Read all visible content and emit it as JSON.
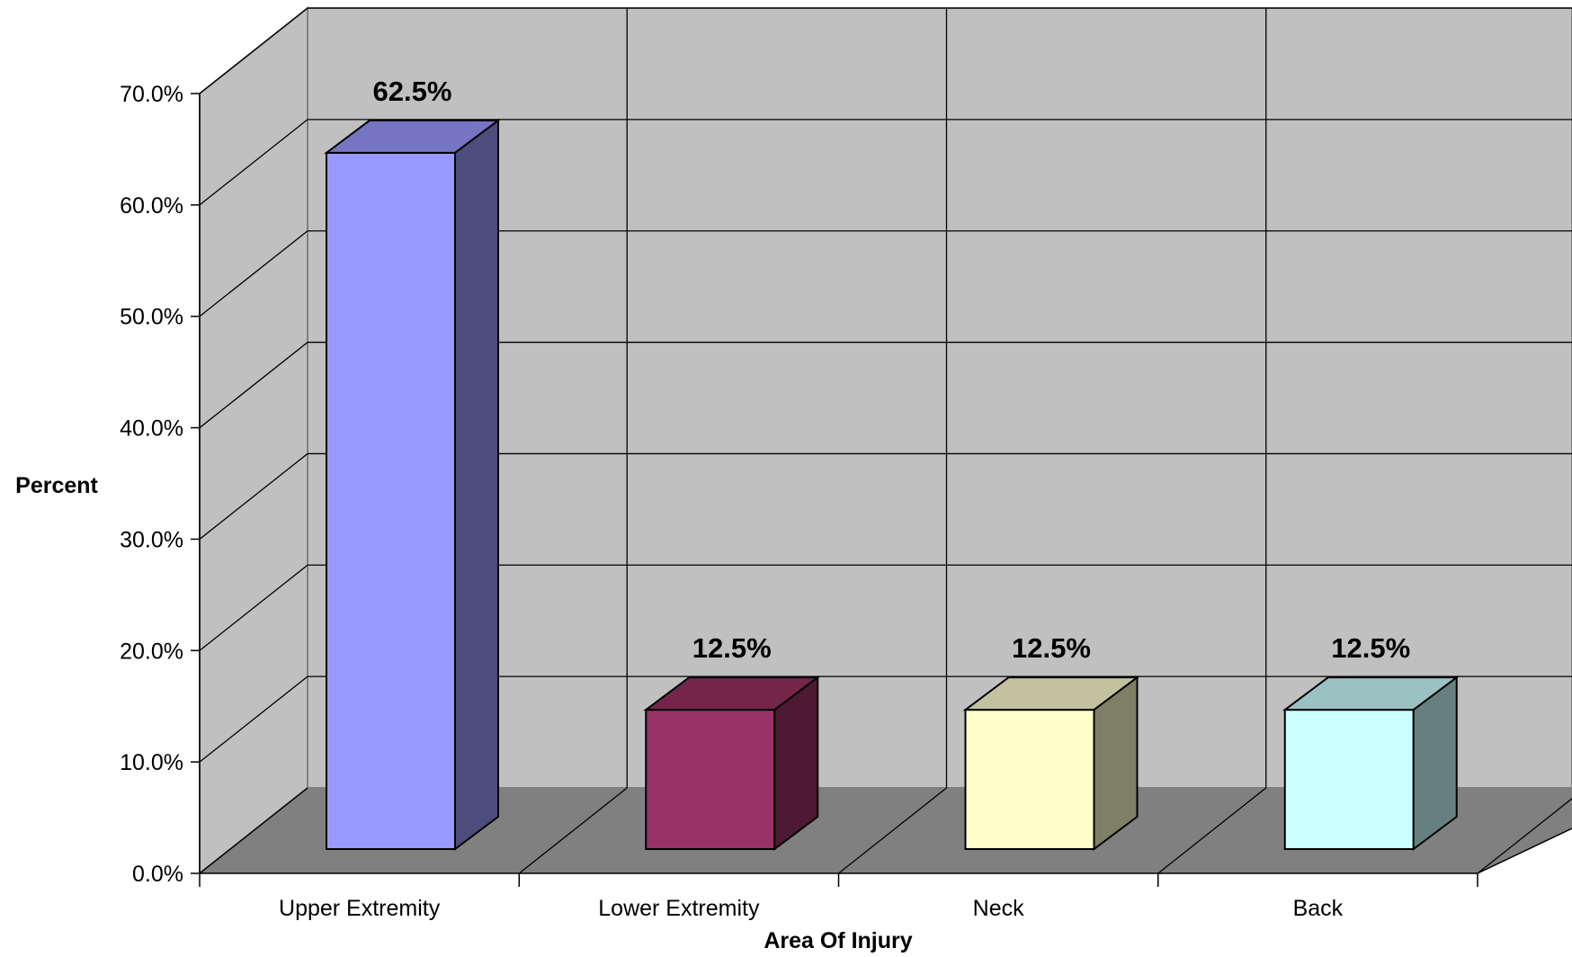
{
  "chart_data": {
    "type": "bar",
    "categories": [
      "Upper Extremity",
      "Lower Extremity",
      "Neck",
      "Back"
    ],
    "values": [
      62.5,
      12.5,
      12.5,
      12.5
    ],
    "data_labels": [
      "62.5%",
      "12.5%",
      "12.5%",
      "12.5%"
    ],
    "title": "",
    "xlabel": "Area Of Injury",
    "ylabel": "Percent",
    "ylim": [
      0,
      70
    ],
    "yticks": [
      0,
      10,
      20,
      30,
      40,
      50,
      60,
      70
    ],
    "ytick_labels": [
      "0.0%",
      "10.0%",
      "20.0%",
      "30.0%",
      "40.0%",
      "50.0%",
      "60.0%",
      "70.0%"
    ],
    "grid": true,
    "three_d": true,
    "bar_colors": [
      {
        "front": "#9999ff",
        "top": "#7575c4",
        "side": "#4c4c7d"
      },
      {
        "front": "#993366",
        "top": "#732649",
        "side": "#4e1932"
      },
      {
        "front": "#ffffcc",
        "top": "#c2c29e",
        "side": "#7f7f66"
      },
      {
        "front": "#ccffff",
        "top": "#9bc2c2",
        "side": "#668080"
      }
    ],
    "wall_color": "#c0c0c0",
    "floor_color": "#808080"
  }
}
